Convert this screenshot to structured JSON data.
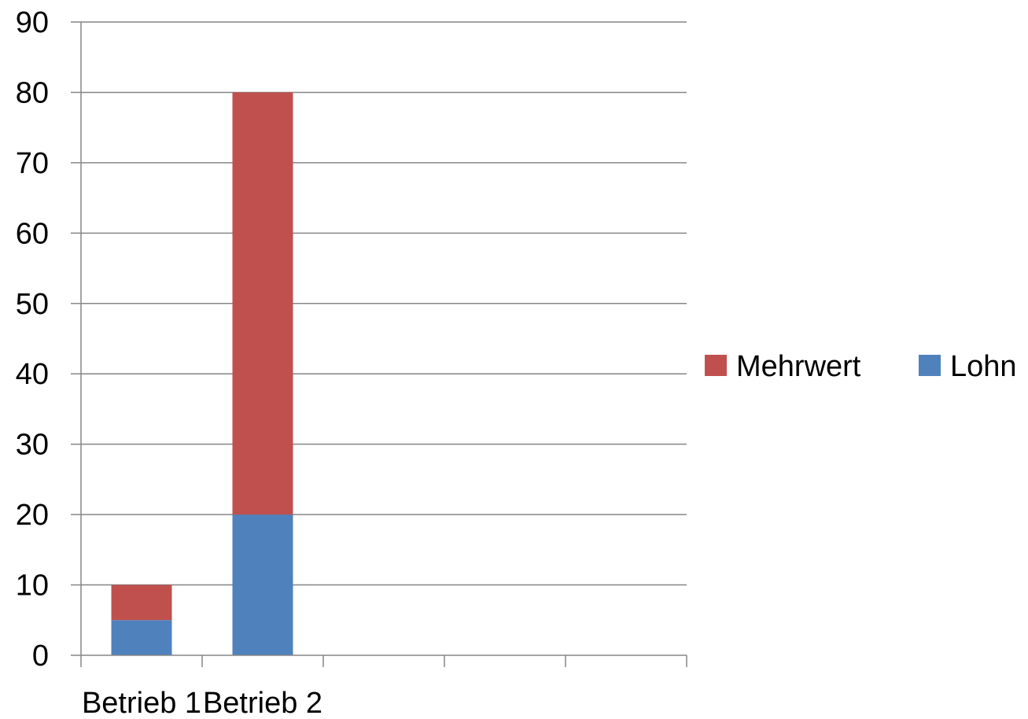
{
  "chart_data": {
    "type": "bar",
    "stacked": true,
    "categories": [
      "Betrieb 1",
      "Betrieb 2",
      "",
      "",
      ""
    ],
    "series": [
      {
        "name": "Lohn",
        "values": [
          5,
          20,
          null,
          null,
          null
        ],
        "color": "#4F81BD"
      },
      {
        "name": "Mehrwert",
        "values": [
          5,
          60,
          null,
          null,
          null
        ],
        "color": "#C0504D"
      }
    ],
    "ylim": [
      0,
      90
    ],
    "yticks": [
      0,
      10,
      20,
      30,
      40,
      50,
      60,
      70,
      80,
      90
    ],
    "grid": true,
    "legend": {
      "placement": "right",
      "entries": [
        {
          "label": "Mehrwert",
          "color": "#C0504D"
        },
        {
          "label": "Lohn",
          "color": "#4F81BD"
        }
      ]
    },
    "title": "",
    "xlabel": "",
    "ylabel": ""
  }
}
